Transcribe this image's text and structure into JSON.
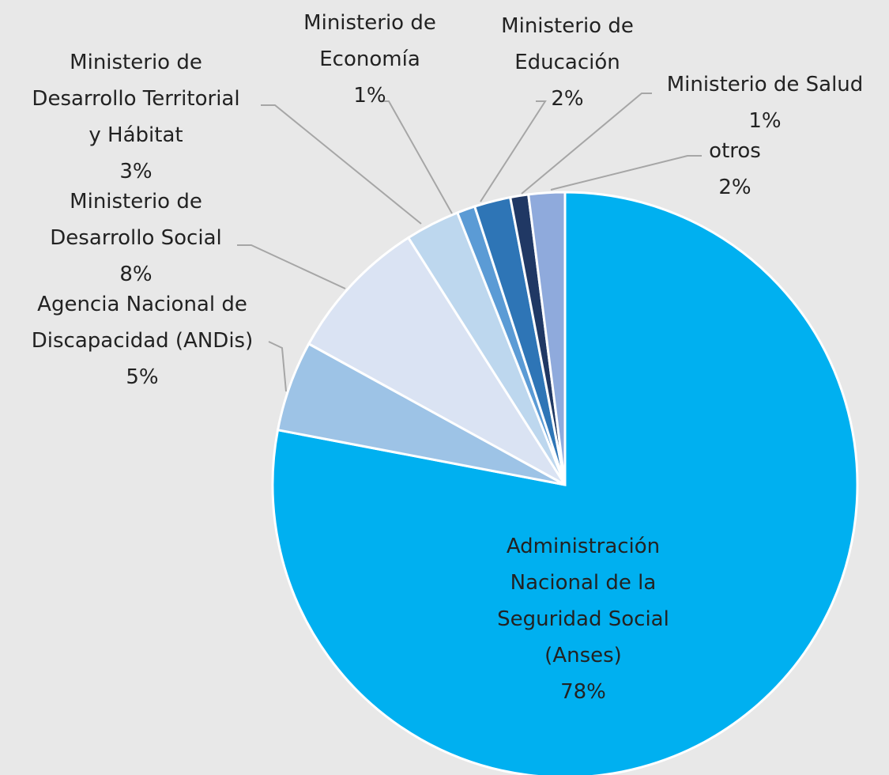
{
  "chart_data": {
    "type": "pie",
    "categories": [
      "Administración\nNacional de la\nSeguridad Social\n(Anses)",
      "Agencia Nacional de\nDiscapacidad (ANDis)",
      "Ministerio de\nDesarrollo Social",
      "Ministerio de\nDesarrollo Territorial\ny Hábitat",
      "Ministerio de\nEconomía",
      "Ministerio de\nEducación",
      "Ministerio de Salud",
      "otros"
    ],
    "values": [
      78,
      5,
      8,
      3,
      1,
      2,
      1,
      2
    ],
    "value_labels": [
      "78%",
      "5%",
      "8%",
      "3%",
      "1%",
      "2%",
      "1%",
      "2%"
    ],
    "colors": [
      "#00b0f0",
      "#9dc3e6",
      "#dae3f3",
      "#bdd7ee",
      "#5b9bd5",
      "#2e75b6",
      "#203864",
      "#8faadc"
    ],
    "start_angle": 0,
    "direction": "clockwise"
  }
}
